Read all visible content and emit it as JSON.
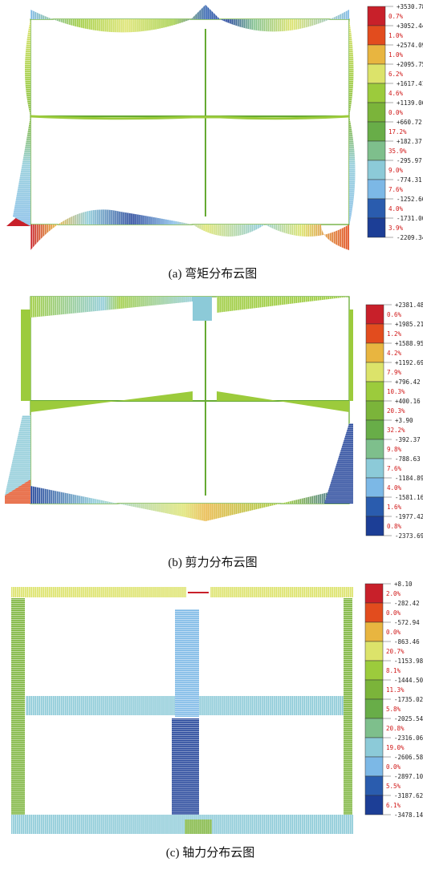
{
  "colors": [
    "#c8202a",
    "#e24c1e",
    "#e8b540",
    "#dce36a",
    "#9ccb3c",
    "#7bb43a",
    "#68ad48",
    "#7ebf8c",
    "#8ccad8",
    "#7cb8e6",
    "#2a5cae",
    "#1c3e96"
  ],
  "panels": [
    {
      "caption": "(a) 弯矩分布云图",
      "legend_values": [
        "+3530.78",
        "+3052.44",
        "+2574.09",
        "+2095.75",
        "+1617.41",
        "+1139.06",
        "+660.72",
        "+182.37",
        "-295.97",
        "-774.31",
        "-1252.66",
        "-1731.00",
        "-2209.34"
      ],
      "legend_percents": [
        "0.7%",
        "1.0%",
        "1.0%",
        "6.2%",
        "4.6%",
        "0.0%",
        "17.2%",
        "35.9%",
        "9.0%",
        "7.6%",
        "4.0%",
        "3.9%"
      ]
    },
    {
      "caption": "(b) 剪力分布云图",
      "legend_values": [
        "+2381.48",
        "+1985.21",
        "+1588.95",
        "+1192.69",
        "+796.42",
        "+400.16",
        "+3.90",
        "-392.37",
        "-788.63",
        "-1184.89",
        "-1581.16",
        "-1977.42",
        "-2373.69"
      ],
      "legend_percents": [
        "0.6%",
        "1.2%",
        "4.2%",
        "7.9%",
        "10.3%",
        "20.3%",
        "32.2%",
        "9.8%",
        "7.6%",
        "4.0%",
        "1.6%",
        "0.8%"
      ]
    },
    {
      "caption": "(c) 轴力分布云图",
      "legend_values": [
        "+8.10",
        "-282.42",
        "-572.94",
        "-863.46",
        "-1153.98",
        "-1444.50",
        "-1735.02",
        "-2025.54",
        "-2316.06",
        "-2606.58",
        "-2897.10",
        "-3187.62",
        "-3478.14"
      ],
      "legend_percents": [
        "2.0%",
        "0.0%",
        "0.0%",
        "20.7%",
        "8.1%",
        "11.3%",
        "5.8%",
        "20.8%",
        "19.0%",
        "0.0%",
        "5.5%",
        "6.1%"
      ]
    }
  ]
}
